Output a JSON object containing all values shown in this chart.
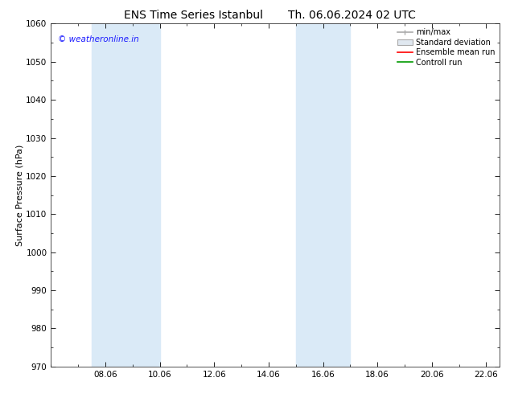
{
  "title_left": "ENS Time Series Istanbul",
  "title_right": "Th. 06.06.2024 02 UTC",
  "ylabel": "Surface Pressure (hPa)",
  "ylim": [
    970,
    1060
  ],
  "yticks": [
    970,
    980,
    990,
    1000,
    1010,
    1020,
    1030,
    1040,
    1050,
    1060
  ],
  "xlim_start": 6.0,
  "xlim_end": 22.5,
  "xticks": [
    8.0,
    10.0,
    12.0,
    14.0,
    16.0,
    18.0,
    20.0,
    22.0
  ],
  "xticklabels": [
    "08.06",
    "10.06",
    "12.06",
    "14.06",
    "16.06",
    "18.06",
    "20.06",
    "22.06"
  ],
  "shaded_bands": [
    {
      "xmin": 7.5,
      "xmax": 10.0,
      "color": "#daeaf7"
    },
    {
      "xmin": 15.0,
      "xmax": 17.0,
      "color": "#daeaf7"
    }
  ],
  "copyright_text": "© weatheronline.in",
  "copyright_color": "#1a1aff",
  "legend_labels": [
    "min/max",
    "Standard deviation",
    "Ensemble mean run",
    "Controll run"
  ],
  "legend_line_colors": [
    "#aaaaaa",
    "#cccccc",
    "#ff0000",
    "#009900"
  ],
  "background_color": "#ffffff",
  "plot_bg_color": "#ffffff",
  "title_fontsize": 10,
  "axis_label_fontsize": 8,
  "tick_fontsize": 7.5,
  "copyright_fontsize": 7.5,
  "legend_fontsize": 7.0
}
